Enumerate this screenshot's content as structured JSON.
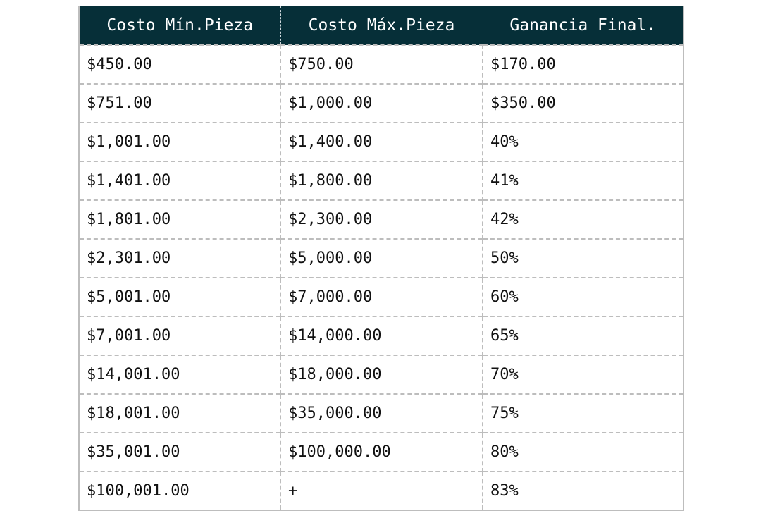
{
  "table": {
    "header_color": "#062f38",
    "headers": [
      "Costo Mín.Pieza",
      "Costo Máx.Pieza",
      "Ganancia Final."
    ],
    "rows": [
      [
        "$450.00",
        "$750.00",
        "$170.00"
      ],
      [
        "$751.00",
        "$1,000.00",
        "$350.00"
      ],
      [
        "$1,001.00",
        "$1,400.00",
        "40%"
      ],
      [
        "$1,401.00",
        "$1,800.00",
        "41%"
      ],
      [
        "$1,801.00",
        "$2,300.00",
        "42%"
      ],
      [
        "$2,301.00",
        "$5,000.00",
        "50%"
      ],
      [
        "$5,001.00",
        "$7,000.00",
        "60%"
      ],
      [
        "$7,001.00",
        "$14,000.00",
        "65%"
      ],
      [
        "$14,001.00",
        "$18,000.00",
        "70%"
      ],
      [
        "$18,001.00",
        "$35,000.00",
        "75%"
      ],
      [
        "$35,001.00",
        "$100,000.00",
        "80%"
      ],
      [
        "$100,001.00",
        "+",
        "83%"
      ]
    ]
  }
}
